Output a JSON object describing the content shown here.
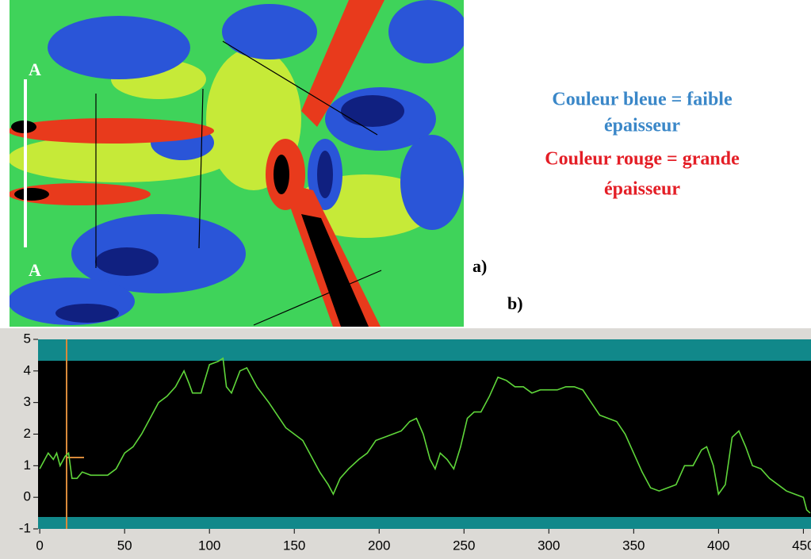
{
  "figure": {
    "map_label_top": "A",
    "map_label_bottom": "A",
    "panel_a": "a)",
    "panel_b": "b)",
    "legend": [
      "Couleur bleue = faible",
      "épaisseur",
      "Couleur rouge = grande",
      "épaisseur"
    ]
  },
  "chart_data": {
    "type": "line",
    "color": "#5fd63a",
    "x": [
      0,
      5,
      8,
      10,
      12,
      15,
      17,
      19,
      22,
      25,
      30,
      35,
      40,
      45,
      50,
      55,
      60,
      65,
      70,
      75,
      80,
      85,
      88,
      90,
      95,
      100,
      105,
      108,
      110,
      113,
      118,
      122,
      128,
      135,
      140,
      145,
      150,
      155,
      160,
      165,
      170,
      173,
      177,
      182,
      188,
      193,
      198,
      203,
      208,
      213,
      218,
      222,
      226,
      230,
      233,
      236,
      240,
      244,
      248,
      252,
      256,
      260,
      265,
      270,
      275,
      280,
      285,
      290,
      295,
      300,
      305,
      310,
      315,
      320,
      325,
      330,
      335,
      340,
      345,
      350,
      355,
      360,
      365,
      370,
      375,
      380,
      385,
      390,
      393,
      397,
      400,
      404,
      408,
      412,
      416,
      420,
      425,
      430,
      435,
      440,
      445,
      450,
      452,
      454
    ],
    "values": [
      0.9,
      1.4,
      1.2,
      1.4,
      1.0,
      1.3,
      1.4,
      0.6,
      0.6,
      0.8,
      0.7,
      0.7,
      0.7,
      0.9,
      1.4,
      1.6,
      2.0,
      2.5,
      3.0,
      3.2,
      3.5,
      4.0,
      3.6,
      3.3,
      3.3,
      4.2,
      4.3,
      4.4,
      3.5,
      3.3,
      4.0,
      4.1,
      3.5,
      3.0,
      2.6,
      2.2,
      2.0,
      1.8,
      1.3,
      0.8,
      0.4,
      0.1,
      0.6,
      0.9,
      1.2,
      1.4,
      1.8,
      1.9,
      2.0,
      2.1,
      2.4,
      2.5,
      2.0,
      1.2,
      0.9,
      1.4,
      1.2,
      0.9,
      1.6,
      2.5,
      2.7,
      2.7,
      3.2,
      3.8,
      3.7,
      3.5,
      3.5,
      3.3,
      3.4,
      3.4,
      3.4,
      3.5,
      3.5,
      3.4,
      3.0,
      2.6,
      2.5,
      2.4,
      2.0,
      1.4,
      0.8,
      0.3,
      0.2,
      0.3,
      0.4,
      1.0,
      1.0,
      1.5,
      1.6,
      1.0,
      0.1,
      0.4,
      1.9,
      2.1,
      1.6,
      1.0,
      0.9,
      0.6,
      0.4,
      0.2,
      0.1,
      0.0,
      -0.4,
      -0.5
    ],
    "xlim": [
      -1,
      454.5
    ],
    "ylim": [
      -1,
      5
    ],
    "xticks": [
      0,
      50,
      100,
      150,
      200,
      250,
      300,
      350,
      400,
      450
    ],
    "yticks": [
      -1,
      0,
      1,
      2,
      3,
      4,
      5
    ]
  }
}
